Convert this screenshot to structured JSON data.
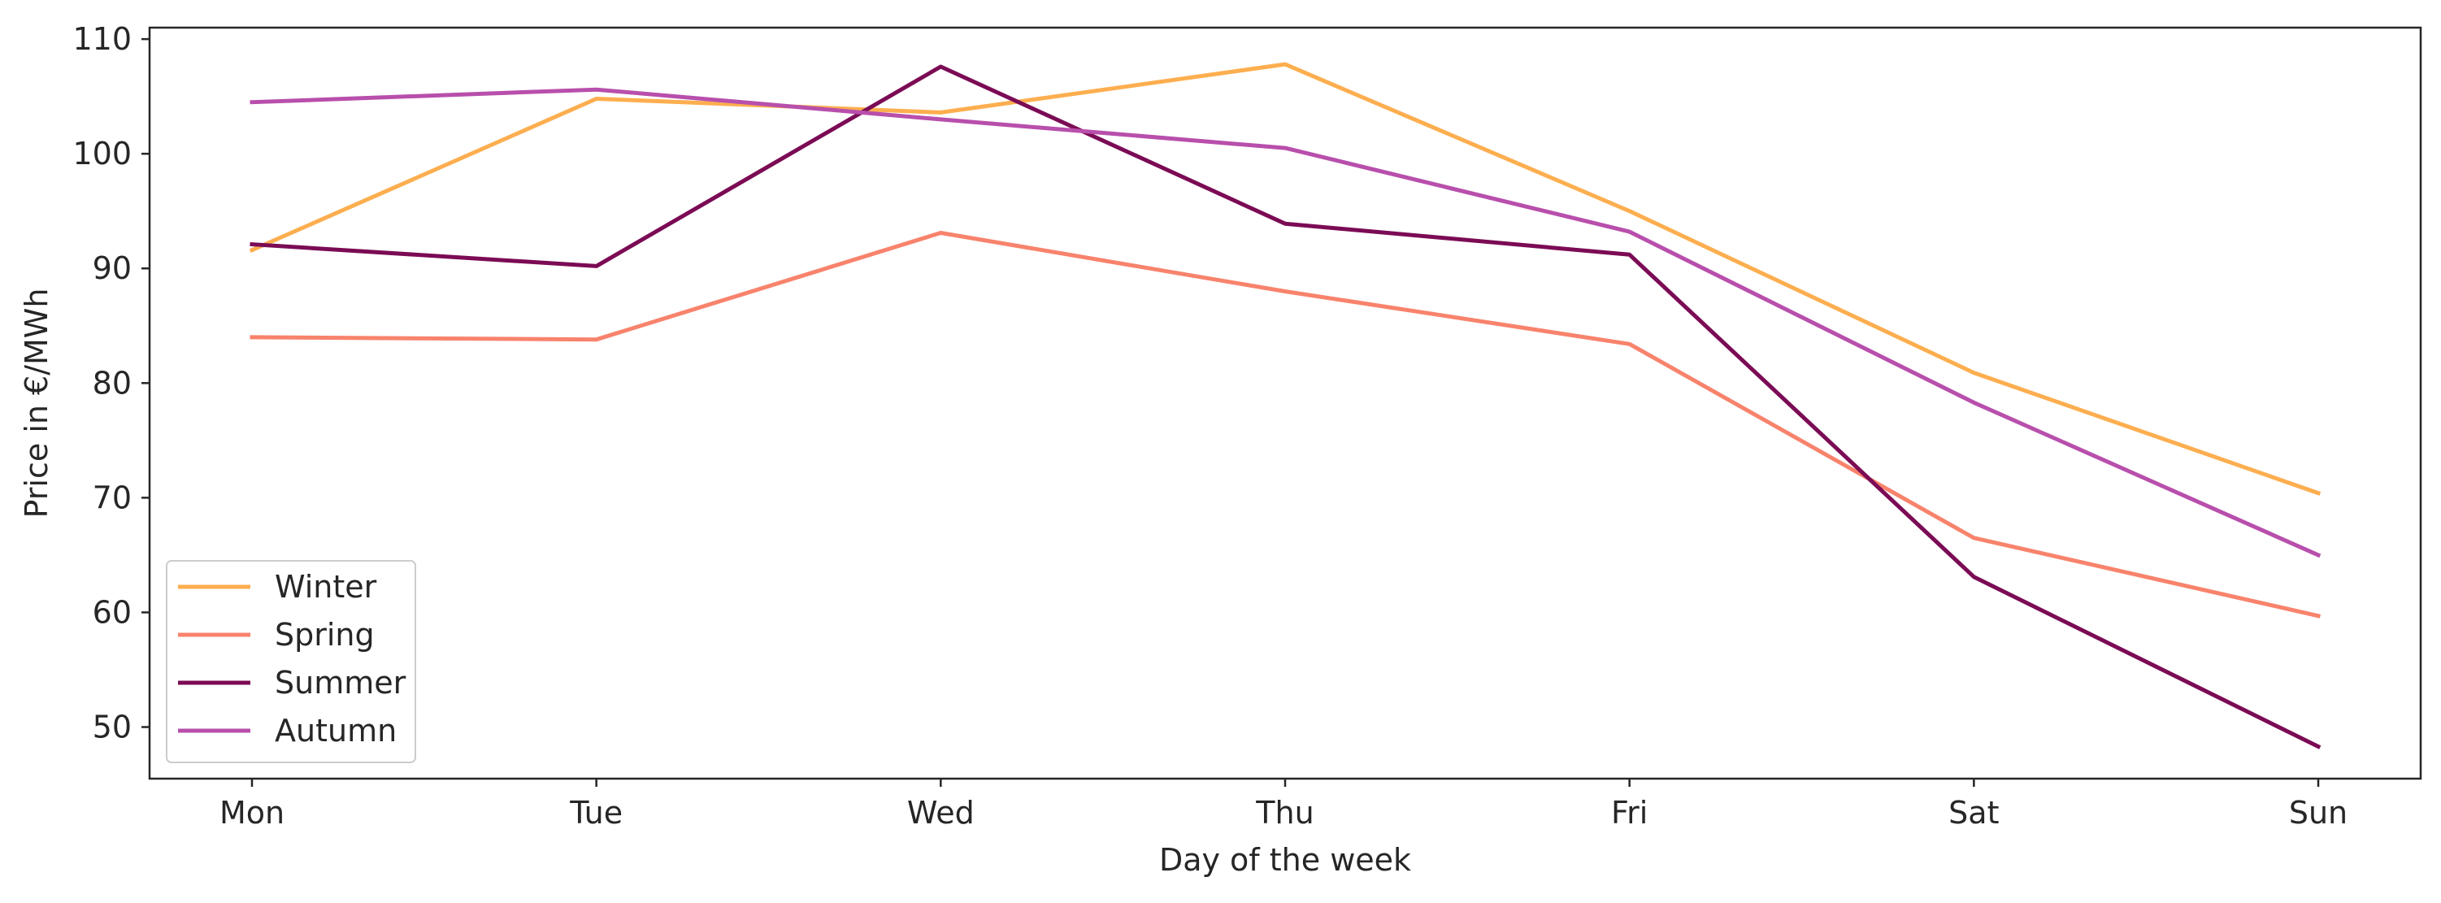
{
  "chart_data": {
    "type": "line",
    "xlabel": "Day of the week",
    "ylabel": "Price in €/MWh",
    "categories": [
      "Mon",
      "Tue",
      "Wed",
      "Thu",
      "Fri",
      "Sat",
      "Sun"
    ],
    "ylim": [
      45.5,
      111
    ],
    "yticks": [
      50,
      60,
      70,
      80,
      90,
      100,
      110
    ],
    "grid": false,
    "legend_position": "lower-left",
    "series": [
      {
        "name": "Winter",
        "color": "#fdae4f",
        "values": [
          91.6,
          104.8,
          103.6,
          107.8,
          95.0,
          80.9,
          70.4
        ]
      },
      {
        "name": "Spring",
        "color": "#f8836c",
        "values": [
          84.0,
          83.8,
          93.1,
          88.0,
          83.4,
          66.5,
          59.7
        ]
      },
      {
        "name": "Summer",
        "color": "#7b0b55",
        "values": [
          92.1,
          90.2,
          107.6,
          93.9,
          91.2,
          63.1,
          48.3
        ]
      },
      {
        "name": "Autumn",
        "color": "#b84fac",
        "values": [
          104.5,
          105.6,
          103.0,
          100.5,
          93.2,
          78.3,
          65.0
        ]
      }
    ]
  }
}
